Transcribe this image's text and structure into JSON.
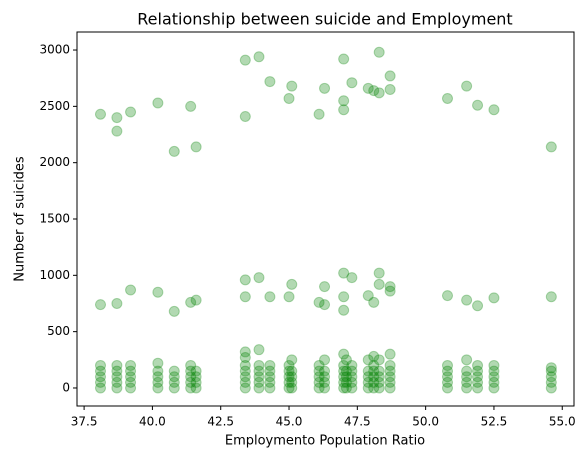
{
  "chart_data": {
    "type": "scatter",
    "title": "Relationship between suicide and Employment",
    "x_label": "Employmento Population Ratio",
    "y_label": "Number of suicides",
    "xlim": [
      37.24,
      55.43
    ],
    "ylim": [
      -160,
      3160
    ],
    "xticks": [
      37.5,
      {
        "value": 40.0,
        "label": "40.0"
      },
      42.5,
      {
        "value": 45.0,
        "label": "45.0"
      },
      47.5,
      {
        "value": 50.0,
        "label": "50.0"
      },
      52.5,
      {
        "value": 55.0,
        "label": "55.0"
      }
    ],
    "yticks": [
      0,
      500,
      1000,
      1500,
      2000,
      2500,
      3000
    ],
    "series": [
      {
        "color": "#008000",
        "opacity": 0.3,
        "x": [
          38.1,
          38.1,
          38.1,
          38.1,
          38.1,
          38.1,
          38.1,
          38.7,
          38.7,
          38.7,
          38.7,
          38.7,
          38.7,
          38.7,
          38.7,
          39.2,
          39.2,
          39.2,
          39.2,
          39.2,
          39.2,
          39.2,
          40.2,
          40.2,
          40.2,
          40.2,
          40.2,
          40.2,
          40.2,
          40.8,
          40.8,
          40.8,
          40.8,
          40.8,
          40.8,
          41.4,
          41.4,
          41.4,
          41.4,
          41.4,
          41.4,
          41.4,
          41.6,
          41.6,
          41.6,
          41.6,
          41.6,
          41.6,
          43.4,
          43.4,
          43.4,
          43.4,
          43.4,
          43.4,
          43.4,
          43.4,
          43.4,
          43.4,
          43.4,
          43.9,
          43.9,
          43.9,
          43.9,
          43.9,
          43.9,
          43.9,
          43.9,
          44.3,
          44.3,
          44.3,
          44.3,
          44.3,
          44.3,
          44.3,
          45.0,
          45.0,
          45.0,
          45.0,
          45.0,
          45.0,
          45.0,
          45.1,
          45.1,
          45.1,
          45.1,
          45.1,
          45.1,
          45.1,
          46.1,
          46.1,
          46.1,
          46.1,
          46.1,
          46.1,
          46.1,
          46.3,
          46.3,
          46.3,
          46.3,
          46.3,
          46.3,
          46.3,
          46.3,
          47.0,
          47.0,
          47.0,
          47.0,
          47.0,
          47.0,
          47.0,
          47.0,
          47.0,
          47.0,
          47.0,
          47.0,
          47.1,
          47.1,
          47.1,
          47.1,
          47.1,
          47.3,
          47.3,
          47.3,
          47.3,
          47.3,
          47.3,
          47.3,
          47.9,
          47.9,
          47.9,
          47.9,
          47.9,
          47.9,
          47.9,
          48.1,
          48.1,
          48.1,
          48.1,
          48.1,
          48.1,
          48.1,
          48.1,
          48.3,
          48.3,
          48.3,
          48.3,
          48.3,
          48.3,
          48.3,
          48.3,
          48.3,
          48.7,
          48.7,
          48.7,
          48.7,
          48.7,
          48.7,
          48.7,
          48.7,
          48.7,
          48.7,
          50.8,
          50.8,
          50.8,
          50.8,
          50.8,
          50.8,
          50.8,
          51.5,
          51.5,
          51.5,
          51.5,
          51.5,
          51.5,
          51.5,
          51.9,
          51.9,
          51.9,
          51.9,
          51.9,
          51.9,
          51.9,
          52.5,
          52.5,
          52.5,
          52.5,
          52.5,
          52.5,
          52.5,
          54.6,
          54.6,
          54.6,
          54.6,
          54.6,
          54.6,
          54.6
        ],
        "values": [
          0,
          50,
          100,
          150,
          200,
          2430,
          740,
          0,
          50,
          100,
          150,
          200,
          2400,
          2280,
          750,
          0,
          50,
          100,
          150,
          200,
          2450,
          870,
          0,
          50,
          100,
          150,
          220,
          2530,
          850,
          0,
          50,
          100,
          150,
          2100,
          680,
          0,
          50,
          100,
          150,
          200,
          2500,
          760,
          0,
          50,
          100,
          150,
          780,
          2140,
          0,
          50,
          100,
          150,
          200,
          270,
          320,
          2910,
          2410,
          960,
          810,
          0,
          50,
          100,
          150,
          200,
          340,
          2940,
          980,
          0,
          50,
          100,
          150,
          200,
          2720,
          810,
          0,
          50,
          100,
          150,
          200,
          2570,
          810,
          0,
          50,
          100,
          150,
          250,
          2680,
          920,
          0,
          50,
          100,
          150,
          200,
          2430,
          760,
          0,
          50,
          100,
          150,
          250,
          2660,
          740,
          900,
          0,
          50,
          100,
          150,
          200,
          300,
          2920,
          2550,
          2470,
          1020,
          690,
          810,
          0,
          50,
          100,
          150,
          250,
          0,
          50,
          100,
          150,
          200,
          2710,
          980,
          0,
          50,
          100,
          150,
          250,
          2660,
          820,
          0,
          50,
          100,
          150,
          200,
          280,
          2640,
          760,
          0,
          50,
          100,
          150,
          250,
          2620,
          920,
          2980,
          1020,
          0,
          50,
          100,
          150,
          200,
          300,
          2770,
          2650,
          900,
          860,
          0,
          50,
          100,
          150,
          200,
          2570,
          820,
          0,
          50,
          100,
          150,
          250,
          2680,
          780,
          0,
          50,
          100,
          150,
          200,
          2510,
          730,
          0,
          50,
          100,
          150,
          200,
          2470,
          800,
          0,
          50,
          100,
          150,
          180,
          2140,
          810
        ]
      }
    ]
  }
}
